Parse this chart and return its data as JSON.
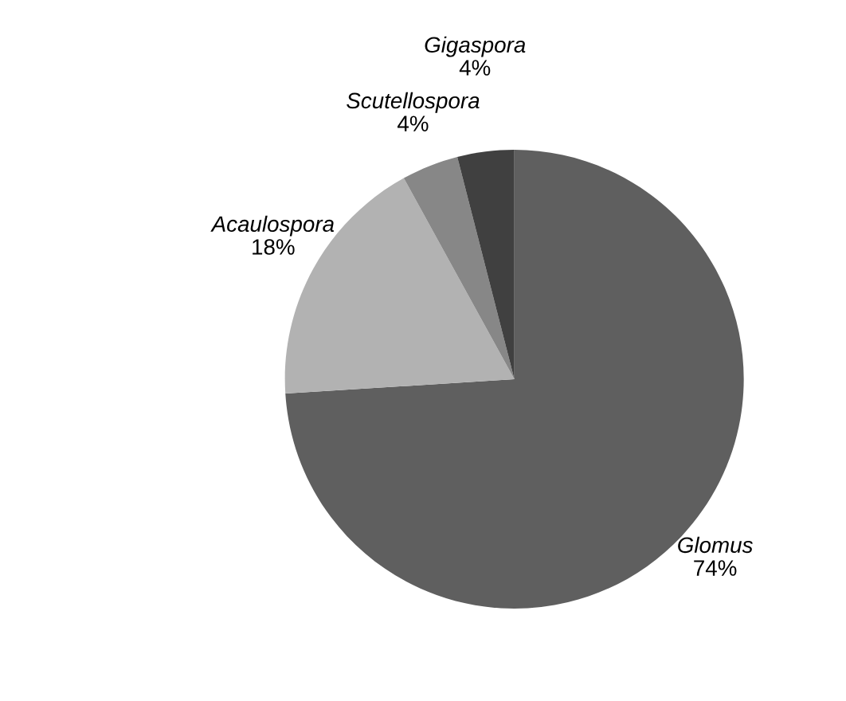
{
  "chart_data": {
    "type": "pie",
    "categories": [
      "Glomus",
      "Acaulospora",
      "Scutellospora",
      "Gigaspora"
    ],
    "values": [
      74,
      18,
      4,
      4
    ],
    "colors": [
      "#5f5f5f",
      "#b2b2b2",
      "#878787",
      "#404040"
    ],
    "value_labels": [
      "74%",
      "18%",
      "4%",
      "4%"
    ]
  }
}
